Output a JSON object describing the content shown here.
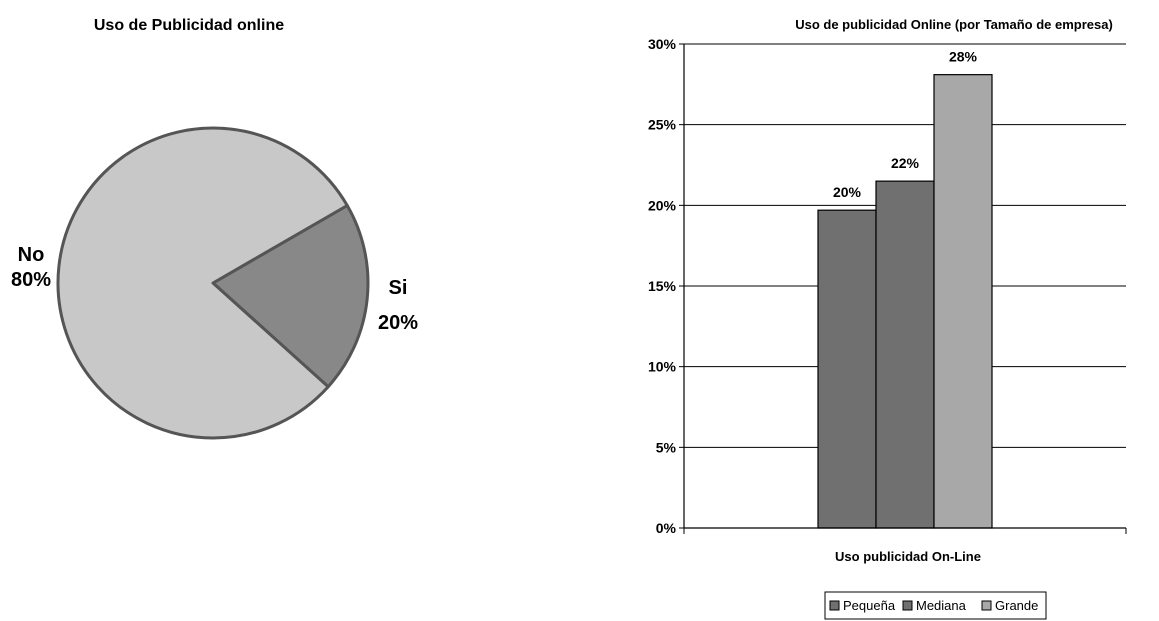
{
  "chart_data": [
    {
      "type": "pie",
      "title": "Uso de Publicidad online",
      "labels": [
        "Si",
        "No"
      ],
      "values": [
        20,
        80
      ],
      "value_labels": [
        "20%",
        "80%"
      ],
      "colors": [
        "#888888",
        "#c8c8c8"
      ],
      "stroke": "#555555"
    },
    {
      "type": "bar",
      "title": "Uso de publicidad Online (por Tamaño de empresa)",
      "categories": [
        "Uso publicidad On-Line"
      ],
      "xlabel": "Uso publicidad On-Line",
      "ylabel": "",
      "ylim": [
        0,
        30
      ],
      "yticks": [
        0,
        5,
        10,
        15,
        20,
        25,
        30
      ],
      "ytick_labels": [
        "0%",
        "5%",
        "10%",
        "15%",
        "20%",
        "25%",
        "30%"
      ],
      "grid": true,
      "legend_position": "bottom",
      "series": [
        {
          "name": "Pequeña",
          "values": [
            19.7
          ],
          "label": "20%",
          "color": "#707070"
        },
        {
          "name": "Mediana",
          "values": [
            21.5
          ],
          "label": "22%",
          "color": "#707070"
        },
        {
          "name": "Grande",
          "values": [
            28.1
          ],
          "label": "28%",
          "color": "#a8a8a8"
        }
      ]
    }
  ]
}
